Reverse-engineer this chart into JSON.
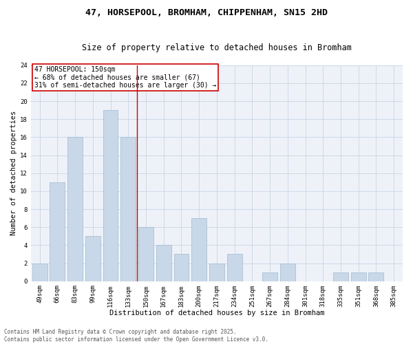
{
  "title1": "47, HORSEPOOL, BROMHAM, CHIPPENHAM, SN15 2HD",
  "title2": "Size of property relative to detached houses in Bromham",
  "xlabel": "Distribution of detached houses by size in Bromham",
  "ylabel": "Number of detached properties",
  "categories": [
    "49sqm",
    "66sqm",
    "83sqm",
    "99sqm",
    "116sqm",
    "133sqm",
    "150sqm",
    "167sqm",
    "183sqm",
    "200sqm",
    "217sqm",
    "234sqm",
    "251sqm",
    "267sqm",
    "284sqm",
    "301sqm",
    "318sqm",
    "335sqm",
    "351sqm",
    "368sqm",
    "385sqm"
  ],
  "values": [
    2,
    11,
    16,
    5,
    19,
    16,
    6,
    4,
    3,
    7,
    2,
    3,
    0,
    1,
    2,
    0,
    0,
    1,
    1,
    1,
    0
  ],
  "bar_color": "#c8d8e8",
  "bar_edgecolor": "#a0b8d0",
  "highlight_line_color": "#cc0000",
  "annotation_text": "47 HORSEPOOL: 150sqm\n← 68% of detached houses are smaller (67)\n31% of semi-detached houses are larger (30) →",
  "annotation_fontsize": 7,
  "footer": "Contains HM Land Registry data © Crown copyright and database right 2025.\nContains public sector information licensed under the Open Government Licence v3.0.",
  "ylim": [
    0,
    24
  ],
  "yticks": [
    0,
    2,
    4,
    6,
    8,
    10,
    12,
    14,
    16,
    18,
    20,
    22,
    24
  ],
  "grid_color": "#ccd8e8",
  "bg_color": "#eef2f8",
  "title_fontsize": 9.5,
  "subtitle_fontsize": 8.5,
  "axis_label_fontsize": 7.5,
  "tick_fontsize": 6.5,
  "footer_fontsize": 5.5
}
